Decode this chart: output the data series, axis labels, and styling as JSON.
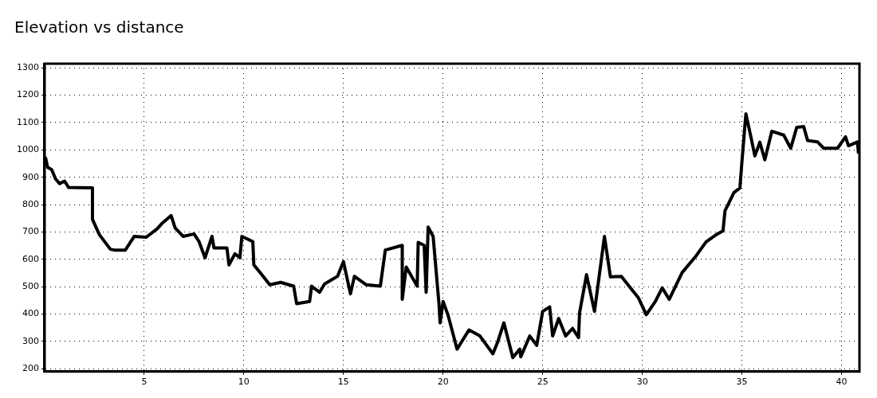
{
  "chart_data": {
    "type": "line",
    "title": "Elevation vs distance",
    "xlim": [
      0,
      40.9
    ],
    "ylim": [
      190,
      1315
    ],
    "xticks": [
      5,
      10,
      15,
      20,
      25,
      30,
      35,
      40
    ],
    "yticks": [
      200,
      300,
      400,
      500,
      600,
      700,
      800,
      900,
      1000,
      1100,
      1200,
      1300
    ],
    "grid": true,
    "legend": false,
    "marker": "none",
    "line_style": "solid",
    "series": [
      {
        "color": "#000000",
        "x": [
          0,
          0.05,
          0.15,
          0.35,
          0.55,
          0.75,
          1.0,
          1.2,
          2.4,
          2.4,
          2.75,
          3.3,
          3.5,
          4.05,
          4.5,
          5.1,
          5.65,
          5.9,
          6.35,
          6.55,
          6.95,
          7.5,
          7.75,
          8.05,
          8.4,
          8.5,
          9.15,
          9.25,
          9.55,
          9.8,
          9.9,
          10.45,
          10.5,
          10.9,
          11.3,
          11.85,
          12.5,
          12.65,
          13.3,
          13.4,
          13.8,
          14.05,
          14.7,
          15.0,
          15.35,
          15.55,
          16.15,
          16.85,
          17.1,
          17.95,
          17.95,
          18.15,
          18.7,
          18.75,
          19.05,
          19.15,
          19.25,
          19.5,
          19.8,
          19.85,
          20.0,
          20.25,
          20.7,
          21.3,
          21.85,
          22.5,
          22.75,
          23.05,
          23.5,
          23.85,
          23.9,
          24.35,
          24.7,
          25.0,
          25.35,
          25.5,
          25.8,
          26.15,
          26.5,
          26.8,
          26.85,
          27.2,
          27.6,
          28.1,
          28.4,
          28.95,
          29.4,
          29.8,
          30.2,
          30.65,
          31.0,
          31.35,
          32.0,
          32.65,
          33.2,
          33.75,
          34.05,
          34.15,
          34.6,
          34.9,
          35.0,
          35.2,
          35.45,
          35.65,
          35.9,
          36.15,
          36.5,
          37.1,
          37.45,
          37.75,
          38.1,
          38.3,
          38.8,
          39.1,
          39.8,
          40.2,
          40.35,
          40.8,
          40.85
        ],
        "values": [
          942,
          970,
          936,
          928,
          894,
          877,
          886,
          863,
          861,
          746,
          690,
          637,
          634,
          634,
          684,
          681,
          712,
          732,
          760,
          715,
          684,
          693,
          665,
          606,
          684,
          642,
          642,
          580,
          620,
          606,
          684,
          665,
          580,
          544,
          507,
          516,
          502,
          438,
          446,
          502,
          480,
          510,
          538,
          592,
          474,
          538,
          507,
          502,
          634,
          651,
          454,
          572,
          502,
          662,
          651,
          480,
          718,
          684,
          432,
          368,
          446,
          396,
          272,
          342,
          320,
          255,
          300,
          368,
          241,
          272,
          244,
          320,
          286,
          410,
          426,
          320,
          384,
          320,
          348,
          314,
          404,
          544,
          410,
          684,
          536,
          538,
          496,
          460,
          398,
          446,
          496,
          454,
          552,
          608,
          664,
          692,
          704,
          777,
          844,
          861,
          956,
          1132,
          1048,
          978,
          1028,
          964,
          1068,
          1054,
          1006,
          1082,
          1085,
          1034,
          1029,
          1006,
          1006,
          1048,
          1015,
          1029,
          987
        ]
      }
    ]
  }
}
